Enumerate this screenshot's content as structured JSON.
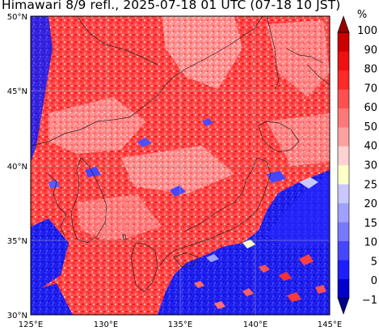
{
  "title": "Himawari 8/9 refl., 2025-07-18 01 UTC (07-18 10 JST)",
  "map": {
    "lat_labels": [
      "50°N",
      "45°N",
      "40°N",
      "35°N",
      "30°N"
    ],
    "lon_labels": [
      "125°E",
      "130°E",
      "135°E",
      "140°E",
      "145°E"
    ]
  },
  "colorbar": {
    "unit": "%",
    "labels": [
      "100",
      "90",
      "80",
      "70",
      "60",
      "50",
      "40",
      "30",
      "25",
      "20",
      "15",
      "10",
      "5",
      "0",
      "−1"
    ],
    "colors": [
      "#00008b",
      "#0000cd",
      "#1e1efa",
      "#4646ff",
      "#7878ff",
      "#a0a0ff",
      "#c8c8ff",
      "#ffffc8",
      "#ffd2d2",
      "#ffa0a0",
      "#ff7878",
      "#ff5050",
      "#ff2828",
      "#ee1111",
      "#cc0000",
      "#990000"
    ]
  }
}
